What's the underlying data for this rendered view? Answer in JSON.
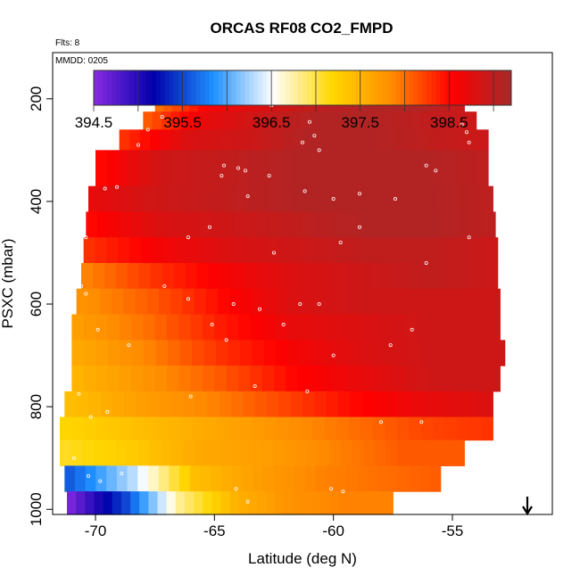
{
  "title": "ORCAS RF08 CO2_FMPD",
  "flights_label": "Flts: 8",
  "date_label": "MMDD: 0205",
  "colors": {
    "scale": [
      "#8a2be2",
      "#0000aa",
      "#1e90ff",
      "#ffffff",
      "#ffd700",
      "#ff8c00",
      "#ff0000",
      "#a52a2a"
    ]
  },
  "chart_data": {
    "type": "heatmap",
    "title": "ORCAS RF08 CO2_FMPD",
    "xlabel": "Latitude (deg N)",
    "ylabel": "PSXC (mbar)",
    "xlim": [
      -71.8,
      -50.8
    ],
    "ylim": [
      1010,
      110
    ],
    "y_reversed": true,
    "x_ticks": [
      -70,
      -65,
      -60,
      -55
    ],
    "x_tick_labels": [
      "-70",
      "-65",
      "-60",
      "-55"
    ],
    "y_ticks": [
      200,
      400,
      600,
      800,
      1000
    ],
    "y_tick_labels": [
      "200",
      "400",
      "600",
      "800",
      "1000"
    ],
    "colorbar": {
      "min": 394.5,
      "max": 399.2,
      "tick_values": [
        394.5,
        395.5,
        396.5,
        397.5,
        398.5
      ],
      "tick_labels": [
        "394.5",
        "395.5",
        "396.5",
        "397.5",
        "398.5"
      ],
      "divisions": [
        394.5,
        395.0,
        395.5,
        396.0,
        396.5,
        397.0,
        397.5,
        398.0,
        398.5,
        399.0
      ]
    },
    "rows": [
      {
        "p_top": 175,
        "p_bot": 225,
        "x0": -67.5,
        "x1": -54.5,
        "values": [
          398.0,
          398.6,
          398.8,
          399.0,
          399.1,
          399.1,
          398.9
        ]
      },
      {
        "p_top": 225,
        "p_bot": 260,
        "x0": -68.0,
        "x1": -54.0,
        "values": [
          398.1,
          398.7,
          398.9,
          399.1,
          399.1,
          399.0,
          398.9
        ]
      },
      {
        "p_top": 260,
        "p_bot": 300,
        "x0": -69.0,
        "x1": -53.5,
        "values": [
          398.3,
          398.8,
          398.9,
          399.1,
          399.1,
          399.0,
          398.9
        ]
      },
      {
        "p_top": 300,
        "p_bot": 370,
        "x0": -70.0,
        "x1": -53.5,
        "values": [
          398.5,
          398.9,
          399.0,
          399.1,
          399.1,
          399.1,
          399.0
        ]
      },
      {
        "p_top": 370,
        "p_bot": 420,
        "x0": -70.3,
        "x1": -53.3,
        "values": [
          398.7,
          398.9,
          399.0,
          399.1,
          399.1,
          399.1,
          399.0
        ]
      },
      {
        "p_top": 420,
        "p_bot": 470,
        "x0": -70.4,
        "x1": -53.2,
        "values": [
          398.5,
          398.8,
          398.9,
          399.0,
          399.1,
          399.1,
          399.0
        ]
      },
      {
        "p_top": 470,
        "p_bot": 520,
        "x0": -70.5,
        "x1": -53.1,
        "values": [
          398.3,
          398.6,
          398.8,
          398.9,
          399.0,
          399.0,
          398.9
        ]
      },
      {
        "p_top": 520,
        "p_bot": 570,
        "x0": -70.6,
        "x1": -53.1,
        "values": [
          397.9,
          398.3,
          398.6,
          398.8,
          398.9,
          399.0,
          398.9
        ]
      },
      {
        "p_top": 570,
        "p_bot": 620,
        "x0": -70.8,
        "x1": -53.0,
        "values": [
          397.8,
          398.1,
          398.5,
          398.8,
          398.9,
          398.9,
          398.9
        ]
      },
      {
        "p_top": 620,
        "p_bot": 670,
        "x0": -71.0,
        "x1": -53.0,
        "values": [
          397.7,
          398.0,
          398.4,
          398.7,
          398.8,
          398.9,
          398.9
        ]
      },
      {
        "p_top": 670,
        "p_bot": 720,
        "x0": -71.0,
        "x1": -52.8,
        "values": [
          397.6,
          397.9,
          398.3,
          398.6,
          398.8,
          398.9,
          398.9
        ]
      },
      {
        "p_top": 720,
        "p_bot": 770,
        "x0": -71.0,
        "x1": -53.0,
        "values": [
          397.5,
          397.8,
          398.1,
          398.5,
          398.7,
          398.9,
          398.9
        ]
      },
      {
        "p_top": 770,
        "p_bot": 820,
        "x0": -71.3,
        "x1": -53.3,
        "values": [
          397.4,
          397.7,
          397.9,
          398.2,
          398.5,
          398.7,
          398.8
        ]
      },
      {
        "p_top": 820,
        "p_bot": 865,
        "x0": -71.5,
        "x1": -53.3,
        "values": [
          397.2,
          397.4,
          397.6,
          397.8,
          398.0,
          398.2,
          398.3
        ]
      },
      {
        "p_top": 865,
        "p_bot": 915,
        "x0": -71.5,
        "x1": -54.5,
        "values": [
          397.1,
          397.3,
          397.6,
          397.7,
          397.9,
          398.1,
          398.1
        ]
      },
      {
        "p_top": 915,
        "p_bot": 965,
        "x0": -71.3,
        "x1": -55.5,
        "values": [
          395.6,
          396.3,
          397.4,
          397.7,
          397.9,
          398.0,
          398.1
        ]
      },
      {
        "p_top": 965,
        "p_bot": 1010,
        "x0": -71.2,
        "x1": -57.5,
        "values": [
          394.6,
          395.5,
          396.8,
          397.5,
          397.8,
          397.9,
          397.9
        ]
      }
    ],
    "flight_track": [
      [
        -67.4,
        210
      ],
      [
        -66.8,
        210
      ],
      [
        -66.2,
        210
      ],
      [
        -65.6,
        210
      ],
      [
        -65.0,
        210
      ],
      [
        -64.4,
        210
      ],
      [
        -63.8,
        210
      ],
      [
        -63.2,
        210
      ],
      [
        -62.6,
        213
      ],
      [
        -59.1,
        210
      ],
      [
        -58.4,
        210
      ],
      [
        -57.7,
        210
      ],
      [
        -57.0,
        210
      ],
      [
        -56.3,
        210
      ],
      [
        -55.6,
        210
      ],
      [
        -54.9,
        210
      ],
      [
        -67.2,
        235
      ],
      [
        -61.0,
        245
      ],
      [
        -60.8,
        272
      ],
      [
        -61.3,
        285
      ],
      [
        -60.6,
        300
      ],
      [
        -54.6,
        250
      ],
      [
        -54.4,
        265
      ],
      [
        -54.3,
        285
      ],
      [
        -67.8,
        260
      ],
      [
        -68.2,
        290
      ],
      [
        -64.6,
        330
      ],
      [
        -64.0,
        335
      ],
      [
        -63.7,
        340
      ],
      [
        -62.7,
        350
      ],
      [
        -56.1,
        330
      ],
      [
        -55.7,
        340
      ],
      [
        -69.6,
        375
      ],
      [
        -69.1,
        372
      ],
      [
        -64.7,
        350
      ],
      [
        -63.6,
        390
      ],
      [
        -61.2,
        380
      ],
      [
        -60.0,
        395
      ],
      [
        -58.9,
        385
      ],
      [
        -57.4,
        395
      ],
      [
        -70.4,
        470
      ],
      [
        -66.1,
        470
      ],
      [
        -65.2,
        450
      ],
      [
        -62.5,
        500
      ],
      [
        -59.7,
        480
      ],
      [
        -58.9,
        450
      ],
      [
        -56.1,
        520
      ],
      [
        -54.3,
        470
      ],
      [
        -70.6,
        565
      ],
      [
        -70.4,
        580
      ],
      [
        -67.1,
        565
      ],
      [
        -66.1,
        590
      ],
      [
        -64.2,
        600
      ],
      [
        -63.1,
        610
      ],
      [
        -61.4,
        600
      ],
      [
        -60.6,
        600
      ],
      [
        -69.9,
        650
      ],
      [
        -68.6,
        680
      ],
      [
        -65.1,
        640
      ],
      [
        -64.5,
        670
      ],
      [
        -62.1,
        640
      ],
      [
        -60.0,
        700
      ],
      [
        -57.6,
        680
      ],
      [
        -56.7,
        650
      ],
      [
        -70.7,
        775
      ],
      [
        -70.2,
        820
      ],
      [
        -69.5,
        810
      ],
      [
        -66.0,
        780
      ],
      [
        -63.3,
        760
      ],
      [
        -61.1,
        770
      ],
      [
        -58.0,
        830
      ],
      [
        -56.3,
        830
      ],
      [
        -70.9,
        900
      ],
      [
        -70.3,
        935
      ],
      [
        -69.8,
        945
      ],
      [
        -68.9,
        930
      ],
      [
        -64.1,
        960
      ],
      [
        -63.6,
        985
      ],
      [
        -60.1,
        960
      ],
      [
        -59.6,
        965
      ]
    ]
  }
}
